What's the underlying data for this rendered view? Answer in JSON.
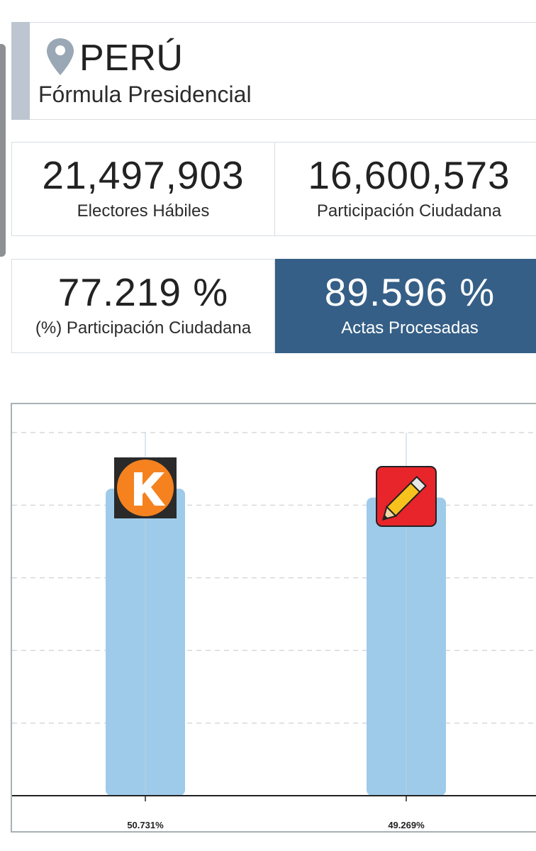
{
  "header": {
    "icon": "location-pin-icon",
    "country": "PERÚ",
    "subtitle": "Fórmula Presidencial"
  },
  "stats": {
    "electores": {
      "value": "21,497,903",
      "label": "Electores Hábiles"
    },
    "participacion": {
      "value": "16,600,573",
      "label": "Participación Ciudadana"
    },
    "participacion_pct": {
      "value": "77.219 %",
      "label": "(%) Participación Ciudadana"
    },
    "actas": {
      "value": "89.596 %",
      "label": "Actas Procesadas"
    }
  },
  "colors": {
    "accent_bar": "#bcc5d0",
    "highlight_card": "#355f86",
    "bar_fill": "#9fcbea",
    "pin": "#9aa7b5"
  },
  "chart_data": {
    "type": "bar",
    "categories": [
      "fuerza-popular-logo",
      "peru-libre-logo"
    ],
    "values": [
      50.731,
      49.269
    ],
    "value_labels": [
      "50.731%",
      "49.269%"
    ],
    "icons": [
      "orange-k-logo-icon",
      "pencil-logo-icon"
    ],
    "grid": true,
    "ylim": [
      0,
      60
    ]
  }
}
